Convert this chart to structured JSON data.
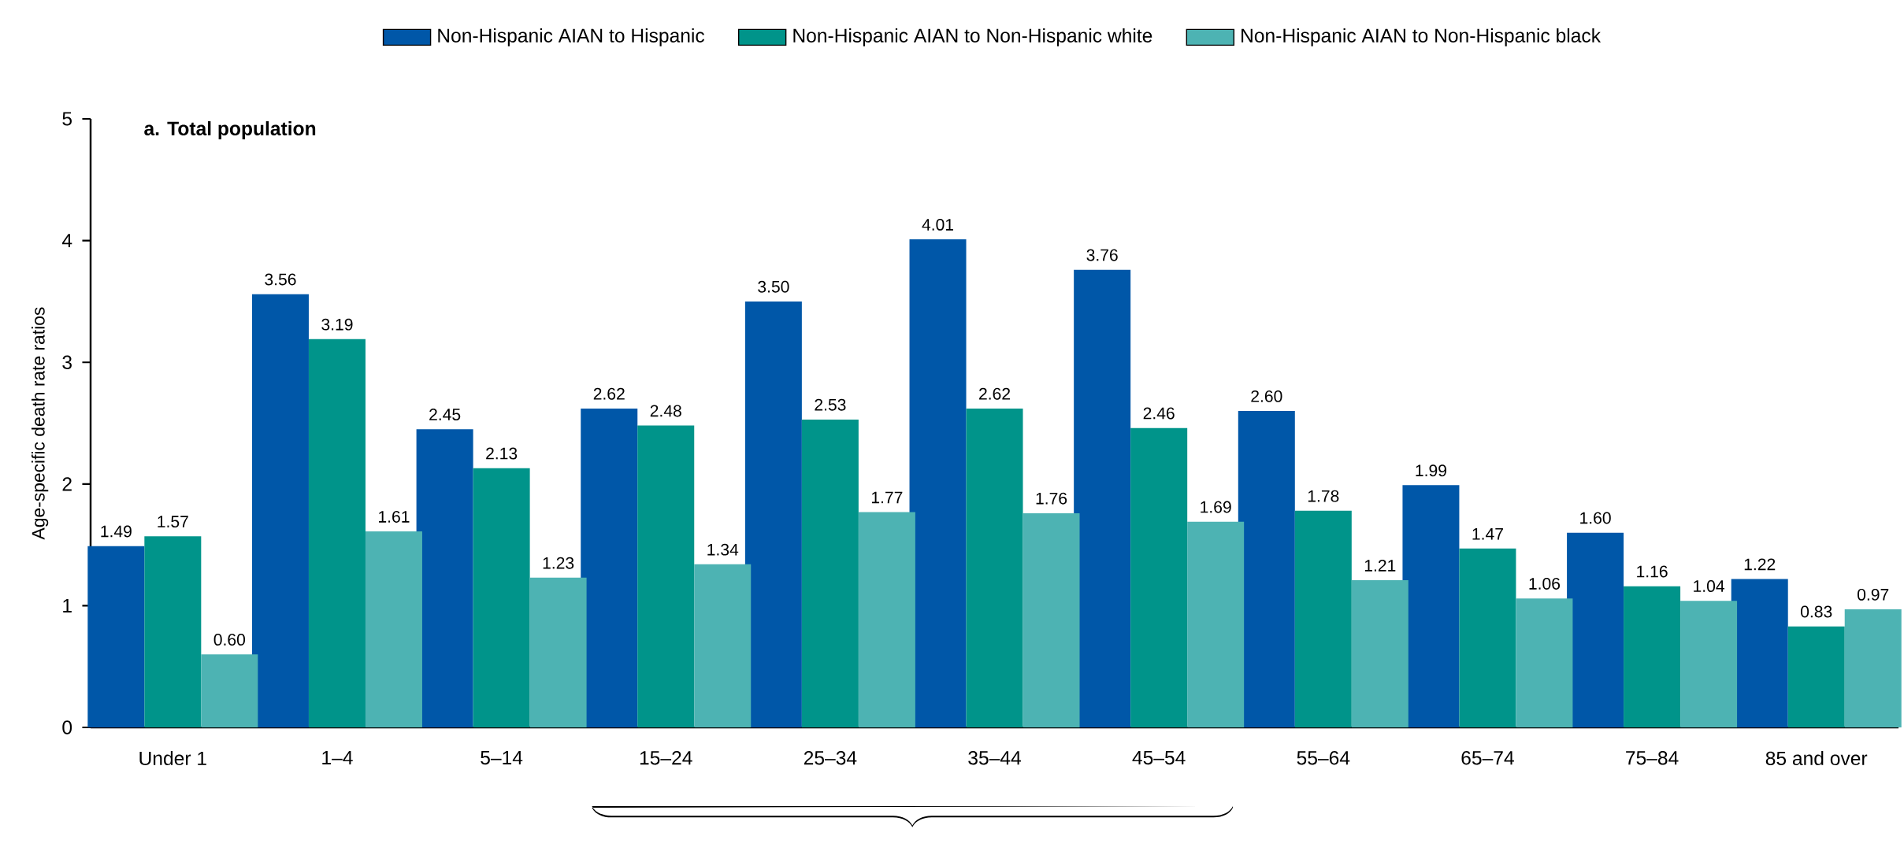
{
  "chart_data": {
    "type": "bar",
    "title": "**a. Total population**",
    "ylabel": "Age-specific death rate ratios",
    "categories": [
      "Under 1",
      "1–4",
      "5–14",
      "15–24",
      "25–34",
      "35–44",
      "45–54",
      "55–64",
      "65–74",
      "75–84",
      "85 and over"
    ],
    "series": [
      {
        "name": "Non-Hispanic AIAN to Hispanic",
        "color": "#0057a8",
        "values": [
          1.49,
          3.56,
          2.45,
          2.62,
          3.5,
          4.01,
          3.76,
          2.6,
          1.99,
          1.6,
          1.22
        ],
        "value_labels": [
          "1.49",
          "3.56",
          "2.45",
          "2.62",
          "3.50",
          "4.01",
          "3.76",
          "2.60",
          "1.99",
          "1.60",
          "1.22"
        ]
      },
      {
        "name": "Non-Hispanic AIAN to Non-Hispanic white",
        "color": "#00948a",
        "values": [
          1.57,
          3.19,
          2.13,
          2.48,
          2.53,
          2.62,
          2.46,
          1.78,
          1.47,
          1.16,
          0.83
        ],
        "value_labels": [
          "1.57",
          "3.19",
          "2.13",
          "2.48",
          "2.53",
          "2.62",
          "2.46",
          "1.78",
          "1.47",
          "1.16",
          "0.83"
        ]
      },
      {
        "name": "Non-Hispanic AIAN to Non-Hispanic black",
        "color": "#4db3b3",
        "values": [
          0.6,
          1.61,
          1.23,
          1.34,
          1.77,
          1.76,
          1.69,
          1.21,
          1.06,
          1.04,
          0.97
        ],
        "value_labels": [
          "0.60",
          "1.61",
          "1.23",
          "1.34",
          "1.77",
          "1.76",
          "1.69",
          "1.21",
          "1.06",
          "1.04",
          "0.97"
        ]
      }
    ],
    "ylim": [
      0,
      5
    ],
    "yticks": [
      0,
      1,
      2,
      3,
      4,
      5
    ],
    "grid": false,
    "legend": "top"
  }
}
